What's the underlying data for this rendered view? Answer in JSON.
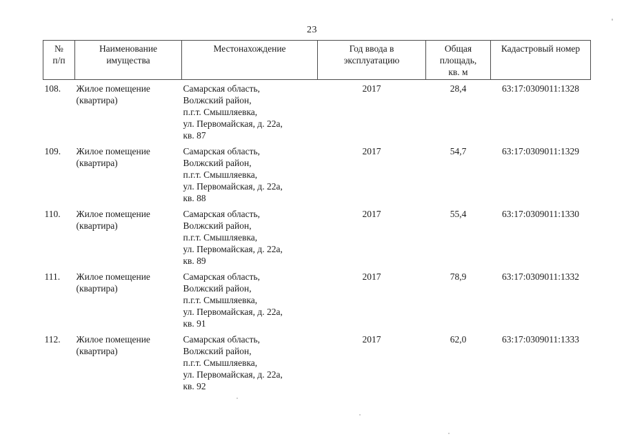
{
  "page": {
    "number": "23"
  },
  "table": {
    "columns": [
      {
        "label": "№\nп/п"
      },
      {
        "label": "Наименование\nимущества"
      },
      {
        "label": "Местонахождение"
      },
      {
        "label": "Год ввода в\nэксплуатацию"
      },
      {
        "label": "Общая\nплощадь,\nкв. м"
      },
      {
        "label": "Кадастровый номер"
      }
    ],
    "rows": [
      {
        "num": "108.",
        "name": "Жилое помещение\n(квартира)",
        "location": "Самарская область,\nВолжский район,\nп.г.т. Смышляевка,\nул. Первомайская, д. 22а,\nкв. 87",
        "year": "2017",
        "area": "28,4",
        "cadastral": "63:17:0309011:1328"
      },
      {
        "num": "109.",
        "name": "Жилое помещение\n(квартира)",
        "location": "Самарская область,\nВолжский район,\nп.г.т. Смышляевка,\nул. Первомайская, д. 22а,\nкв. 88",
        "year": "2017",
        "area": "54,7",
        "cadastral": "63:17:0309011:1329"
      },
      {
        "num": "110.",
        "name": "Жилое помещение\n(квартира)",
        "location": "Самарская область,\nВолжский район,\nп.г.т. Смышляевка,\nул. Первомайская, д. 22а,\nкв. 89",
        "year": "2017",
        "area": "55,4",
        "cadastral": "63:17:0309011:1330"
      },
      {
        "num": "111.",
        "name": "Жилое помещение\n(квартира)",
        "location": "Самарская область,\nВолжский район,\nп.г.т. Смышляевка,\nул. Первомайская, д. 22а,\nкв. 91",
        "year": "2017",
        "area": "78,9",
        "cadastral": "63:17:0309011:1332"
      },
      {
        "num": "112.",
        "name": "Жилое помещение\n(квартира)",
        "location": "Самарская область,\nВолжский район,\nп.г.т. Смышляевка,\nул. Первомайская, д. 22а,\nкв. 92",
        "year": "2017",
        "area": "62,0",
        "cadastral": "63:17:0309011:1333"
      }
    ]
  }
}
